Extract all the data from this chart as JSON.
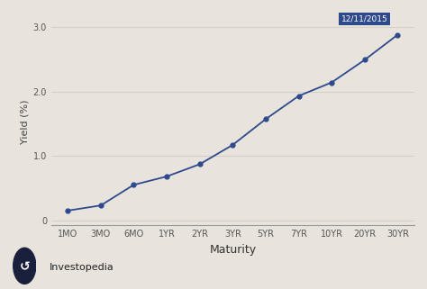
{
  "x_labels": [
    "1MO",
    "3MO",
    "6MO",
    "1YR",
    "2YR",
    "3YR",
    "5YR",
    "7YR",
    "10YR",
    "20YR",
    "30YR"
  ],
  "y_values": [
    0.15,
    0.23,
    0.55,
    0.68,
    0.87,
    1.17,
    1.57,
    1.93,
    2.14,
    2.49,
    2.88
  ],
  "line_color": "#2e4a8c",
  "marker_color": "#2e4a8c",
  "bg_color": "#e8e4dd",
  "plot_bg_color": "#e8e4dd",
  "grid_color": "#d0ccc5",
  "ylabel": "Yield (%)",
  "xlabel": "Maturity",
  "annotation_text": "12/11/2015",
  "annotation_bg": "#2e4a8c",
  "annotation_text_color": "#ffffff",
  "yticks": [
    0.0,
    1.0,
    2.0,
    3.0
  ],
  "ylim": [
    -0.08,
    3.15
  ],
  "axis_label_fontsize": 8,
  "tick_fontsize": 7,
  "investopedia_text": "Investopedia",
  "investopedia_color": "#222222",
  "bottom_bg": "#e8e4dd"
}
